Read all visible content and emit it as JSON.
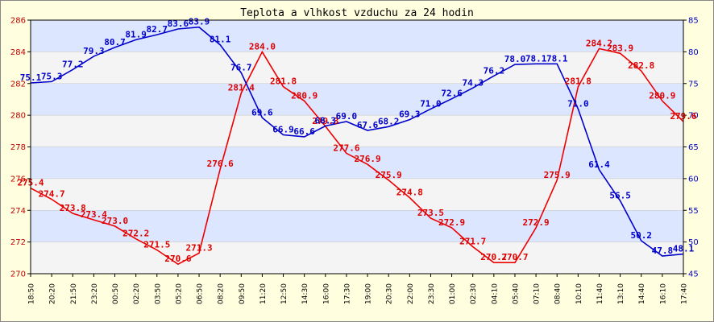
{
  "chart_data": {
    "type": "line",
    "title": "Teplota a vlhkost vzduchu za 24 hodin",
    "x": [
      "18:50",
      "20:20",
      "21:50",
      "23:20",
      "00:50",
      "02:20",
      "03:50",
      "05:20",
      "06:50",
      "08:20",
      "09:50",
      "11:20",
      "12:50",
      "14:30",
      "16:00",
      "17:30",
      "19:00",
      "20:30",
      "22:00",
      "23:30",
      "01:00",
      "02:30",
      "04:10",
      "05:40",
      "07:10",
      "08:40",
      "10:10",
      "11:40",
      "13:10",
      "14:40",
      "16:10",
      "17:40"
    ],
    "y_left": {
      "ticks": [
        "270",
        "272",
        "274",
        "276",
        "278",
        "280",
        "282",
        "284",
        "286"
      ],
      "ylim": [
        270,
        286
      ]
    },
    "y_right": {
      "ticks": [
        "45",
        "50",
        "55",
        "60",
        "65",
        "70",
        "75",
        "80",
        "85"
      ],
      "ylim": [
        45,
        85
      ]
    },
    "grid": true,
    "series": [
      {
        "axis": "left",
        "color": "#ee0000",
        "points": [
          {
            "x": "18:50",
            "y": 275.4
          },
          {
            "x": "20:20",
            "y": 274.7
          },
          {
            "x": "21:50",
            "y": 273.8
          },
          {
            "x": "23:20",
            "y": 273.4
          },
          {
            "x": "00:50",
            "y": 273.0
          },
          {
            "x": "02:20",
            "y": 272.2
          },
          {
            "x": "03:50",
            "y": 271.5
          },
          {
            "x": "05:20",
            "y": 270.6
          },
          {
            "x": "06:50",
            "y": 271.3
          },
          {
            "x": "08:20",
            "y": 276.6
          },
          {
            "x": "09:50",
            "y": 281.4
          },
          {
            "x": "11:20",
            "y": 284.0
          },
          {
            "x": "12:50",
            "y": 281.8
          },
          {
            "x": "14:30",
            "y": 280.9
          },
          {
            "x": "16:00",
            "y": 279.3
          },
          {
            "x": "17:30",
            "y": 277.6
          },
          {
            "x": "19:00",
            "y": 276.9
          },
          {
            "x": "20:30",
            "y": 275.9
          },
          {
            "x": "22:00",
            "y": 274.8
          },
          {
            "x": "23:30",
            "y": 273.5
          },
          {
            "x": "01:00",
            "y": 272.9
          },
          {
            "x": "02:30",
            "y": 271.7
          },
          {
            "x": "04:10",
            "y": 270.7
          },
          {
            "x": "05:40",
            "y": 270.7
          },
          {
            "x": "07:10",
            "y": 272.9
          },
          {
            "x": "08:40",
            "y": 275.9
          },
          {
            "x": "10:10",
            "y": 281.8
          },
          {
            "x": "11:40",
            "y": 284.2
          },
          {
            "x": "13:10",
            "y": 283.9
          },
          {
            "x": "14:40",
            "y": 282.8
          },
          {
            "x": "16:10",
            "y": 280.9
          },
          {
            "x": "17:40",
            "y": 279.6
          }
        ],
        "labels": [
          {
            "x": "18:50",
            "y": 275.4,
            "text": "275.4"
          },
          {
            "x": "20:20",
            "y": 274.7,
            "text": "274.7"
          },
          {
            "x": "21:50",
            "y": 273.8,
            "text": "273.8"
          },
          {
            "x": "23:20",
            "y": 273.4,
            "text": "273.4"
          },
          {
            "x": "00:50",
            "y": 273.0,
            "text": "273.0"
          },
          {
            "x": "02:20",
            "y": 272.2,
            "text": "272.2"
          },
          {
            "x": "03:50",
            "y": 271.5,
            "text": "271.5"
          },
          {
            "x": "05:20",
            "y": 270.6,
            "text": "270.6"
          },
          {
            "x": "06:50",
            "y": 271.3,
            "text": "271.3"
          },
          {
            "x": "08:20",
            "y": 276.6,
            "text": "276.6"
          },
          {
            "x": "09:50",
            "y": 281.4,
            "text": "281.4"
          },
          {
            "x": "11:20",
            "y": 284.0,
            "text": "284.0"
          },
          {
            "x": "12:50",
            "y": 281.8,
            "text": "281.8"
          },
          {
            "x": "14:30",
            "y": 280.9,
            "text": "280.9"
          },
          {
            "x": "16:00",
            "y": 279.3,
            "text": "279.3"
          },
          {
            "x": "17:30",
            "y": 277.6,
            "text": "277.6"
          },
          {
            "x": "19:00",
            "y": 276.9,
            "text": "276.9"
          },
          {
            "x": "20:30",
            "y": 275.9,
            "text": "275.9"
          },
          {
            "x": "22:00",
            "y": 274.8,
            "text": "274.8"
          },
          {
            "x": "23:30",
            "y": 273.5,
            "text": "273.5"
          },
          {
            "x": "01:00",
            "y": 272.9,
            "text": "272.9"
          },
          {
            "x": "02:30",
            "y": 271.7,
            "text": "271.7"
          },
          {
            "x": "04:10",
            "y": 270.7,
            "text": "270.7"
          },
          {
            "x": "05:40",
            "y": 270.7,
            "text": "270.7"
          },
          {
            "x": "07:10",
            "y": 272.9,
            "text": "272.9"
          },
          {
            "x": "08:40",
            "y": 275.9,
            "text": "275.9"
          },
          {
            "x": "10:10",
            "y": 281.8,
            "text": "281.8"
          },
          {
            "x": "11:40",
            "y": 284.2,
            "text": "284.2"
          },
          {
            "x": "13:10",
            "y": 283.9,
            "text": "283.9"
          },
          {
            "x": "14:40",
            "y": 282.8,
            "text": "282.8"
          },
          {
            "x": "16:10",
            "y": 280.9,
            "text": "280.9"
          },
          {
            "x": "17:40",
            "y": 279.6,
            "text": "279.6"
          }
        ]
      },
      {
        "axis": "right",
        "color": "#0000cc",
        "points": [
          {
            "x": "18:50",
            "y": 75.1
          },
          {
            "x": "20:20",
            "y": 75.3
          },
          {
            "x": "21:50",
            "y": 77.2
          },
          {
            "x": "23:20",
            "y": 79.3
          },
          {
            "x": "00:50",
            "y": 80.7
          },
          {
            "x": "02:20",
            "y": 81.9
          },
          {
            "x": "03:50",
            "y": 82.7
          },
          {
            "x": "05:20",
            "y": 83.6
          },
          {
            "x": "06:50",
            "y": 83.9
          },
          {
            "x": "08:20",
            "y": 81.1
          },
          {
            "x": "09:50",
            "y": 76.7
          },
          {
            "x": "11:20",
            "y": 69.6
          },
          {
            "x": "12:50",
            "y": 66.9
          },
          {
            "x": "14:30",
            "y": 66.6
          },
          {
            "x": "16:00",
            "y": 68.3
          },
          {
            "x": "17:30",
            "y": 69.0
          },
          {
            "x": "19:00",
            "y": 67.6
          },
          {
            "x": "20:30",
            "y": 68.2
          },
          {
            "x": "22:00",
            "y": 69.3
          },
          {
            "x": "23:30",
            "y": 71.0
          },
          {
            "x": "01:00",
            "y": 72.6
          },
          {
            "x": "02:30",
            "y": 74.3
          },
          {
            "x": "04:10",
            "y": 76.2
          },
          {
            "x": "05:40",
            "y": 78.0
          },
          {
            "x": "07:10",
            "y": 78.1
          },
          {
            "x": "08:40",
            "y": 78.1
          },
          {
            "x": "10:10",
            "y": 71.0
          },
          {
            "x": "11:40",
            "y": 61.4
          },
          {
            "x": "13:10",
            "y": 56.5
          },
          {
            "x": "14:40",
            "y": 50.2
          },
          {
            "x": "16:10",
            "y": 47.8
          },
          {
            "x": "17:40",
            "y": 48.1
          }
        ],
        "labels": [
          {
            "x": "18:50",
            "y": 75.1,
            "text": "75.1"
          },
          {
            "x": "20:20",
            "y": 75.3,
            "text": "75.3"
          },
          {
            "x": "21:50",
            "y": 77.2,
            "text": "77.2"
          },
          {
            "x": "23:20",
            "y": 79.3,
            "text": "79.3"
          },
          {
            "x": "00:50",
            "y": 80.7,
            "text": "80.7"
          },
          {
            "x": "02:20",
            "y": 81.9,
            "text": "81.9"
          },
          {
            "x": "03:50",
            "y": 82.7,
            "text": "82.7"
          },
          {
            "x": "05:20",
            "y": 83.6,
            "text": "83.6"
          },
          {
            "x": "06:50",
            "y": 83.9,
            "text": "83.9"
          },
          {
            "x": "08:20",
            "y": 81.1,
            "text": "81.1"
          },
          {
            "x": "09:50",
            "y": 76.7,
            "text": "76.7"
          },
          {
            "x": "11:20",
            "y": 69.6,
            "text": "69.6"
          },
          {
            "x": "12:50",
            "y": 66.9,
            "text": "66.9"
          },
          {
            "x": "14:30",
            "y": 66.6,
            "text": "66.6"
          },
          {
            "x": "16:00",
            "y": 68.3,
            "text": "68.3"
          },
          {
            "x": "17:30",
            "y": 69.0,
            "text": "69.0"
          },
          {
            "x": "19:00",
            "y": 67.6,
            "text": "67.6"
          },
          {
            "x": "20:30",
            "y": 68.2,
            "text": "68.2"
          },
          {
            "x": "22:00",
            "y": 69.3,
            "text": "69.3"
          },
          {
            "x": "23:30",
            "y": 71.0,
            "text": "71.0"
          },
          {
            "x": "01:00",
            "y": 72.6,
            "text": "72.6"
          },
          {
            "x": "02:30",
            "y": 74.3,
            "text": "74.3"
          },
          {
            "x": "04:10",
            "y": 76.2,
            "text": "76.2"
          },
          {
            "x": "05:40",
            "y": 78.0,
            "text": "78.0"
          },
          {
            "x": "07:10",
            "y": 78.1,
            "text": "78.1"
          },
          {
            "x": "08:40",
            "y": 78.1,
            "text": "78.1"
          },
          {
            "x": "10:10",
            "y": 71.0,
            "text": "71.0"
          },
          {
            "x": "11:40",
            "y": 61.4,
            "text": "61.4"
          },
          {
            "x": "13:10",
            "y": 56.5,
            "text": "56.5"
          },
          {
            "x": "14:40",
            "y": 50.2,
            "text": "50.2"
          },
          {
            "x": "16:10",
            "y": 47.8,
            "text": "47.8"
          },
          {
            "x": "17:40",
            "y": 48.1,
            "text": "48.1"
          }
        ]
      }
    ]
  }
}
